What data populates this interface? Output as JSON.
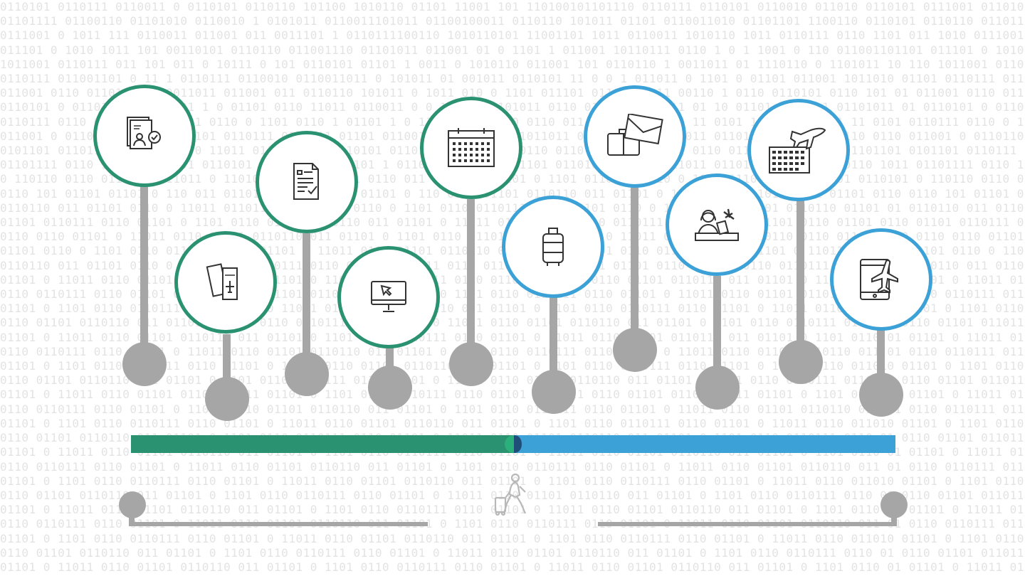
{
  "colors": {
    "phase_one": "#2b9271",
    "phase_two": "#3ba1d6",
    "connector": "#a6a6a6",
    "background_digits": "#e3e3e3"
  },
  "background": {
    "pattern": "binary-digits",
    "rows": [
      "0110101 0110111 0110011 0 0110101 0110110 101100 1010110 01101 11001 101 110100101101110 0110111 0110101 0110010 011010 0110101 0111001",
      "01101111 01100110 01101010 0110010 1 0101011 0110011101011 01100100011 0110110 101011 01101 0110011010 01101101 1100110 0110101 0110110",
      "0111001 0 1011 111 0110011 011001 011 0011101 1 0110111100110 1010110101 11001101 1011 0110011 1010110 1011 0110111 0110 1101 011 1010",
      "011101 0 1010 1011 101 00110101 0110110 011001110 01101011 011001 01 0 1101 1 011001 10110111 0110 1 0 1 1001 0 110 011001101101",
      "1011001 0110111 011 101 011 0 10111 0 101 0110101 01101 1 0011 0 1010110 011001 101 0110110 1 0011011 01 1110110 0 1101011 10 110",
      "0110111 011001101 0 11 1 0110111 0110010 0110011011 0 101011 01 001011 0110101 11 0 0 1 011011 0 1101 0 01101 011001 1011010 01101",
      "011001 0110 0110111 0110011011 011001 011 0110110 101011 0 1011 010 0 1101 011101 01101 1 011 00110 1 0110 0110101 0110 101 01",
      "0110101 0 01101 1 0 0 01101 1 0 01101 0110 11011 0110011 0 0 11010 01101011 0110 01101 11 0 011 01 10 01101 101 011 01101011 01",
      "0110111 0110 0 1 0110110 101 0110 0 1101 0110 1 01101 1 0 11011 011001 0 0110 011 01101 0 11010 11 0101 1011001 01101 11 0101",
      "011001 0 0110110 011 0 1 01101 0110111 0110011 01101 011001 011011 0110 1011011 01101 1 0110 1 011 0110101 01101 0110110 0110",
      "0101101 0110111 01101 0110 0 11011 0110 01101 0110101 011011 0 11010 0110110 0110 01101 0 11011 0110 0110111 011011 0 1101101",
      "01101111 0110 1 011 0 01101 0110101 0 110 0110 01101 1 0110 0110 1 011 01101 0110101 0110 1 011011 01101 0 110 01101 0110 1011",
      "0 110110 0110 0110110 011011 0 11010 01101 0110111 0110 011 0110110 01101 0 1101 0110101 0110 0 1101 0110 1 0110 01101 0110101",
      "0110 101 01101 01101 0 110 011 01101 0110 0110101 01101 0 110 0110 01101 0110110 011 01101 0 1101 0110 0110111 011 01101 0110",
      "0110110 011 01101 0110 0 11011 0110110 011 01101 0110 0 1101 0110 0110111 0110 01101 0110 0 11011 0110 01101 0110110 01101 01",
      "01101 0110111 0110 01101 0 1101 0110 01101 0110110 011 01101 0 11011 0110 01101 0110 0110111 0110 01101 0 1101 0110 01101 0110",
      "0110 0110 01101 0 11011 0110 01101 0110110 011 01101 0 1101 0110 0110111 0110 01101 0 11011 0110 01101 0110110 0110 01101 0110",
      "01101 0110 0 1101 0110 0110111 0110 01101 0 11011 0110 01101 0110110 011 01101 0 1101 0110 0110111 0110 01101 0 11011 0110 01",
      "0110110 011 01101 0110 0 1101 0110 0110111 0110 01101 0 11011 0110 01101 0110110 011 01101 0110 0 1101 0110 0110111 0110 0110",
      "01101 0 11011 0110 01101 0110110 011 01101 0 1101 0110 0110111 0110 01101 0 11011 0110 01101 0110110 011 01101 0 1101 0110 01",
      "0110 0110111 0110 01101 0 11011 0110 01101 0110110 011 01101 0 1101 0110 0110111 0110 01101 0 11011 0110 01101 0110110 011 01",
      "01101 0 1101 0110 0110111 0110 01101 0 11011 0110 01101 0110110 011 01101 0 1101 0110 0110111 0110 01101 0 11011 0110 011010",
      "0110 01101 0110110 011 01101 0 1101 0110 0110111 0110 01101 0 11011 0110 01101 0110110 011 01101 0 1101 0110 0110111 0110 01",
      "01101 0 11011 0110 01101 0110110 011 01101 0 1101 0110 0110111 0110 01101 0 11011 0110 01101 0110110 011 01101 0 1101 0110 01",
      "0110 0110111 0110 01101 0 11011 0110 01101 0110110 011 01101 0 1101 0110 0110111 0110 01101 0 11011 0110 01101 0110110 011 01",
      "01101 0 1101 0110 0110111 0110 01101 0 11011 0110 01101 0110110 011 01101 0 1101 0110 0110111 0110 01101 0 11011 0110 011010",
      "0110 01101 0110110 011 01101 0 1101 0110 0110111 0110 01101 0 11011 0110 01101 0110110 011 01101 0 1101 0110 0110111 0110 01",
      "01101 0 11011 0110 01101 0110110 011 01101 0 1101 0110 0110111 0110 01101 0 11011 0110 01101 0110110 011 01101 0 1101 0110 01",
      "0110 0110111 0110 01101 0 11011 0110 01101 0110110 011 01101 0 1101 0110 0110111 0110 01101 0 11011 0110 01101 0110110 011 01",
      "01101 0 1101 0110 0110111 0110 01101 0 11011 0110 01101 0110110 011 01101 0 1101 0110 0110111 0110 01101 0 11011 0110 011010",
      "0110 01101 0110110 011 01101 0 1101 0110 0110111 0110 01101 0 11011 0110 01101 0110110 011 01101 0 1101 0110 0110111 0110 01",
      "01101 0 11011 0110 01101 0110110 011 01101 0 1101 0110 0110111 0110 01101 0 11011 0110 01101 0110110 011 01101 0 1101 0110 01",
      "0110 0110111 0110 01101 0 11011 0110 01101 0110110 011 01101 0 1101 0110 0110111 0110 01101 0 11011 0110 01101 0110110 011 01",
      "01101 0 1101 0110 0110111 0110 01101 0 11011 0110 01101 0110110 011 01101 0 1101 0110 0110111 0110 01101 0 11011 0110 011010",
      "0110 01101 0110110 011 01101 0 1101 0110 0110111 0110 01101 0 11011 0110 01101 0110110 011 01101 0 1101 0110 0110111 0110 01",
      "01101 0 11011 0110 01101 0110110 011 01101 0 1101 0110 0110111 0110 01101 0 11011 0110 01101 0110110 011 01101 0 1101 0110 01",
      "0110 0110111 0110 01101 0 11011 0110 01101 0110110 011 01101 0 1101 0110 0110111 0110 01101 0 11011 0110 01101 0110110 011 01",
      "01101 0 1101 0110 0110111 0110 01101 0 11011 0110 01101 0110110 011 01101 0 1101 0110 0110111 0110 01101 0 11011 0110 011010",
      "0110 01101 0110110 011 01101 0 1101 0110 0110111 0110 01101 0 11011 0110 01101 0110110 011 01101 0 1101 0110 0110111 0110 01",
      "01101 0 11011 0110 01101 0110110 011 01101 0 1101 0110 0110111 0110 01101 0 11011 0110 01101 0110110 011 01101 0 1101 0110 01"
    ]
  },
  "milestones": [
    {
      "icon": "identity-document-check-icon",
      "phase": "phase_one"
    },
    {
      "icon": "boarding-passes-icon",
      "phase": "phase_one"
    },
    {
      "icon": "checklist-form-icon",
      "phase": "phase_one"
    },
    {
      "icon": "computer-monitor-cursor-icon",
      "phase": "phase_one"
    },
    {
      "icon": "calendar-icon",
      "phase": "phase_one"
    },
    {
      "icon": "rolling-suitcase-icon",
      "phase": "phase_two"
    },
    {
      "icon": "envelope-luggage-icon",
      "phase": "phase_two"
    },
    {
      "icon": "travel-agent-desk-icon",
      "phase": "phase_two"
    },
    {
      "icon": "calendar-airplane-icon",
      "phase": "phase_two"
    },
    {
      "icon": "tablet-airplane-icon",
      "phase": "phase_two"
    }
  ],
  "traveler": {
    "icon": "traveler-with-suitcase-icon"
  }
}
